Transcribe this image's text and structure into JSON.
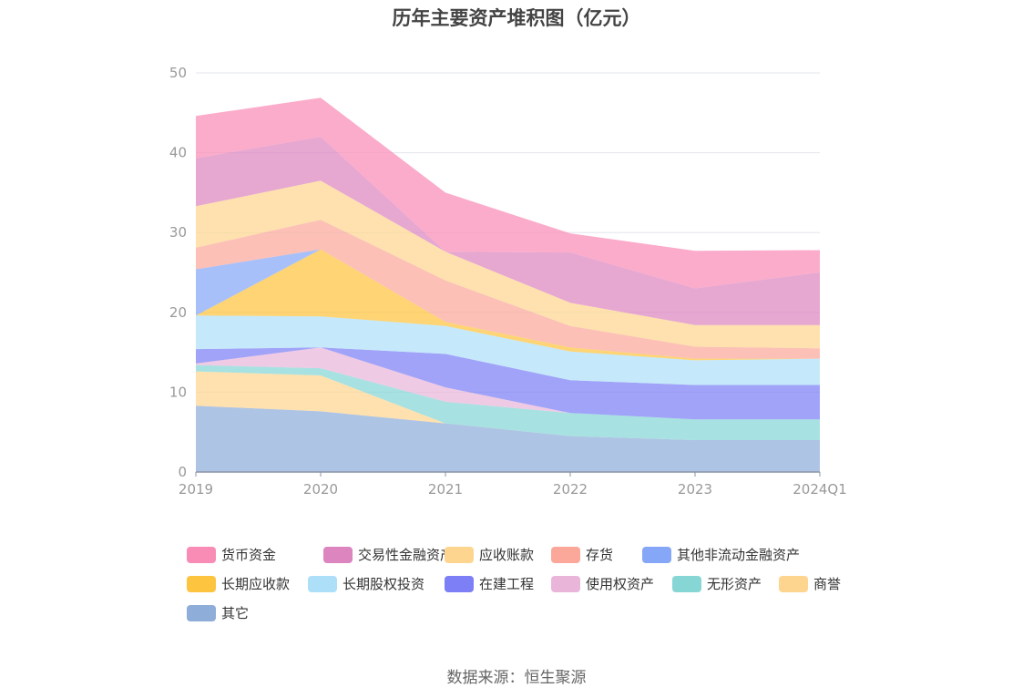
{
  "chart_data": {
    "type": "area",
    "stacked": true,
    "title": "历年主要资产堆积图（亿元）",
    "categories": [
      "2019",
      "2020",
      "2021",
      "2022",
      "2023",
      "2024Q1"
    ],
    "ylim": [
      0,
      50
    ],
    "yticks": [
      0,
      10,
      20,
      30,
      40,
      50
    ],
    "grid": true,
    "legend_position": "bottom",
    "series": [
      {
        "name": "其它",
        "color": "#8fadd9",
        "values": [
          8.3,
          7.6,
          6.1,
          4.5,
          4.0,
          4.0
        ]
      },
      {
        "name": "商誉",
        "color": "#fdd58f",
        "values": [
          4.3,
          4.5,
          0.0,
          0.0,
          0.0,
          0.0
        ]
      },
      {
        "name": "无形资产",
        "color": "#87d6d6",
        "values": [
          0.8,
          0.9,
          2.7,
          2.9,
          2.6,
          2.6
        ]
      },
      {
        "name": "使用权资产",
        "color": "#e9b6da",
        "values": [
          0.2,
          2.6,
          1.8,
          0.0,
          0.0,
          0.0
        ]
      },
      {
        "name": "在建工程",
        "color": "#7c7ff5",
        "values": [
          1.8,
          0.0,
          4.2,
          4.1,
          4.3,
          4.3
        ]
      },
      {
        "name": "长期股权投资",
        "color": "#aedff8",
        "values": [
          4.2,
          3.9,
          3.5,
          3.6,
          3.1,
          3.3
        ]
      },
      {
        "name": "长期应收款",
        "color": "#fdc43f",
        "values": [
          0.0,
          8.4,
          0.5,
          0.5,
          0.2,
          0.0
        ]
      },
      {
        "name": "其他非流动金融资产",
        "color": "#86a7f8",
        "values": [
          5.8,
          0.0,
          0.0,
          0.0,
          0.0,
          0.0
        ]
      },
      {
        "name": "存货",
        "color": "#fba89a",
        "values": [
          2.7,
          3.7,
          5.2,
          2.7,
          1.5,
          1.3
        ]
      },
      {
        "name": "应收账款",
        "color": "#fdd58f",
        "values": [
          5.2,
          4.9,
          3.6,
          2.9,
          2.7,
          2.9
        ]
      },
      {
        "name": "交易性金融资产",
        "color": "#dc85bf",
        "values": [
          6.0,
          5.5,
          0.0,
          6.3,
          4.6,
          6.6
        ]
      },
      {
        "name": "货币资金",
        "color": "#f98cb5",
        "values": [
          5.3,
          4.9,
          7.4,
          2.4,
          4.7,
          2.8
        ]
      }
    ]
  },
  "legend": {
    "items": [
      {
        "label": "货币资金",
        "color": "#f98cb5"
      },
      {
        "label": "交易性金融资产",
        "color": "#dc85bf"
      },
      {
        "label": "应收账款",
        "color": "#fdd58f"
      },
      {
        "label": "存货",
        "color": "#fba89a"
      },
      {
        "label": "其他非流动金融资产",
        "color": "#86a7f8"
      },
      {
        "label": "长期应收款",
        "color": "#fdc43f"
      },
      {
        "label": "长期股权投资",
        "color": "#aedff8"
      },
      {
        "label": "在建工程",
        "color": "#7c7ff5"
      },
      {
        "label": "使用权资产",
        "color": "#e9b6da"
      },
      {
        "label": "无形资产",
        "color": "#87d6d6"
      },
      {
        "label": "商誉",
        "color": "#fdd58f"
      },
      {
        "label": "其它",
        "color": "#8fadd9"
      }
    ]
  },
  "footer": {
    "source": "数据来源：恒生聚源"
  }
}
